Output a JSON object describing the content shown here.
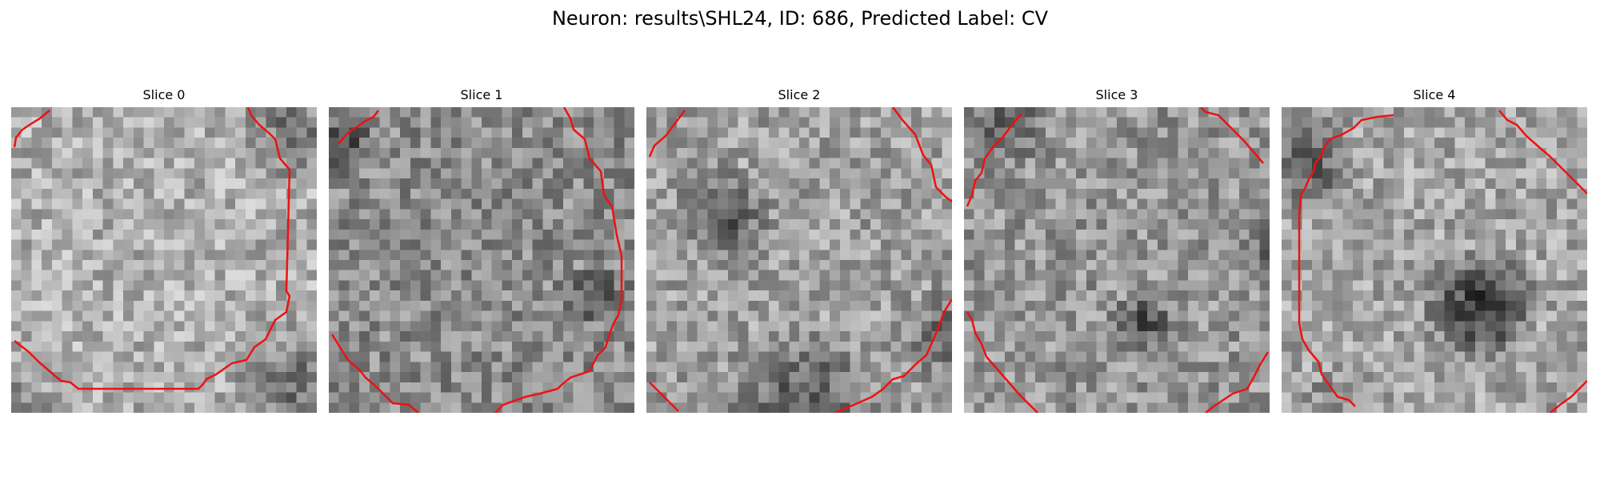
{
  "figure": {
    "title": "Neuron: results\\SHL24, ID: 686, Predicted Label: CV"
  },
  "slices": [
    {
      "title": "Slice 0",
      "image_description": "grayscale EM patch with bright textured nucleus filling the frame, darker border region at lower right"
    },
    {
      "title": "Slice 1",
      "image_description": "grayscale EM patch, noisy mid-gray texture with red outline along right and lower-left edges"
    },
    {
      "title": "Slice 2",
      "image_description": "grayscale EM patch with dark blob at upper left and dark band along bottom edge"
    },
    {
      "title": "Slice 3",
      "image_description": "grayscale EM patch, mottled texture with small dark spot near lower center"
    },
    {
      "title": "Slice 4",
      "image_description": "grayscale EM patch with bright region and prominent dark blob right of center"
    }
  ],
  "colors": {
    "contour": "#ee1111",
    "background": "#ffffff"
  }
}
